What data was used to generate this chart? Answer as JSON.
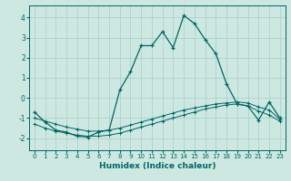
{
  "xlabel": "Humidex (Indice chaleur)",
  "ylabel": "",
  "bg_color": "#cce8e0",
  "grid_color": "#aacccc",
  "line_color": "#006666",
  "xlim": [
    -0.5,
    23.5
  ],
  "ylim": [
    -2.6,
    4.6
  ],
  "yticks": [
    -2,
    -1,
    0,
    1,
    2,
    3,
    4
  ],
  "xticks": [
    0,
    1,
    2,
    3,
    4,
    5,
    6,
    7,
    8,
    9,
    10,
    11,
    12,
    13,
    14,
    15,
    16,
    17,
    18,
    19,
    20,
    21,
    22,
    23
  ],
  "line1_x": [
    0,
    1,
    2,
    3,
    4,
    5,
    6,
    7,
    8,
    9,
    10,
    11,
    12,
    13,
    14,
    15,
    16,
    17,
    18,
    19,
    20,
    21,
    22,
    23
  ],
  "line1_y": [
    -0.7,
    -1.2,
    -1.6,
    -1.7,
    -1.9,
    -1.95,
    -1.7,
    -1.6,
    0.4,
    1.3,
    2.6,
    2.6,
    3.3,
    2.5,
    4.1,
    3.7,
    2.9,
    2.2,
    0.7,
    -0.3,
    -0.4,
    -1.1,
    -0.2,
    -1.0
  ],
  "line2_x": [
    0,
    1,
    2,
    3,
    4,
    5,
    6,
    7,
    8,
    9,
    10,
    11,
    12,
    13,
    14,
    15,
    16,
    17,
    18,
    19,
    20,
    21,
    22,
    23
  ],
  "line2_y": [
    -1.0,
    -1.15,
    -1.3,
    -1.45,
    -1.55,
    -1.65,
    -1.65,
    -1.6,
    -1.5,
    -1.35,
    -1.2,
    -1.05,
    -0.9,
    -0.75,
    -0.6,
    -0.5,
    -0.4,
    -0.3,
    -0.25,
    -0.2,
    -0.25,
    -0.45,
    -0.6,
    -1.05
  ],
  "line3_x": [
    0,
    1,
    2,
    3,
    4,
    5,
    6,
    7,
    8,
    9,
    10,
    11,
    12,
    13,
    14,
    15,
    16,
    17,
    18,
    19,
    20,
    21,
    22,
    23
  ],
  "line3_y": [
    -1.3,
    -1.5,
    -1.65,
    -1.75,
    -1.85,
    -1.9,
    -1.9,
    -1.85,
    -1.75,
    -1.6,
    -1.45,
    -1.3,
    -1.15,
    -1.0,
    -0.85,
    -0.7,
    -0.55,
    -0.45,
    -0.35,
    -0.3,
    -0.4,
    -0.65,
    -0.85,
    -1.15
  ],
  "fig_width": 3.2,
  "fig_height": 2.0,
  "dpi": 100
}
